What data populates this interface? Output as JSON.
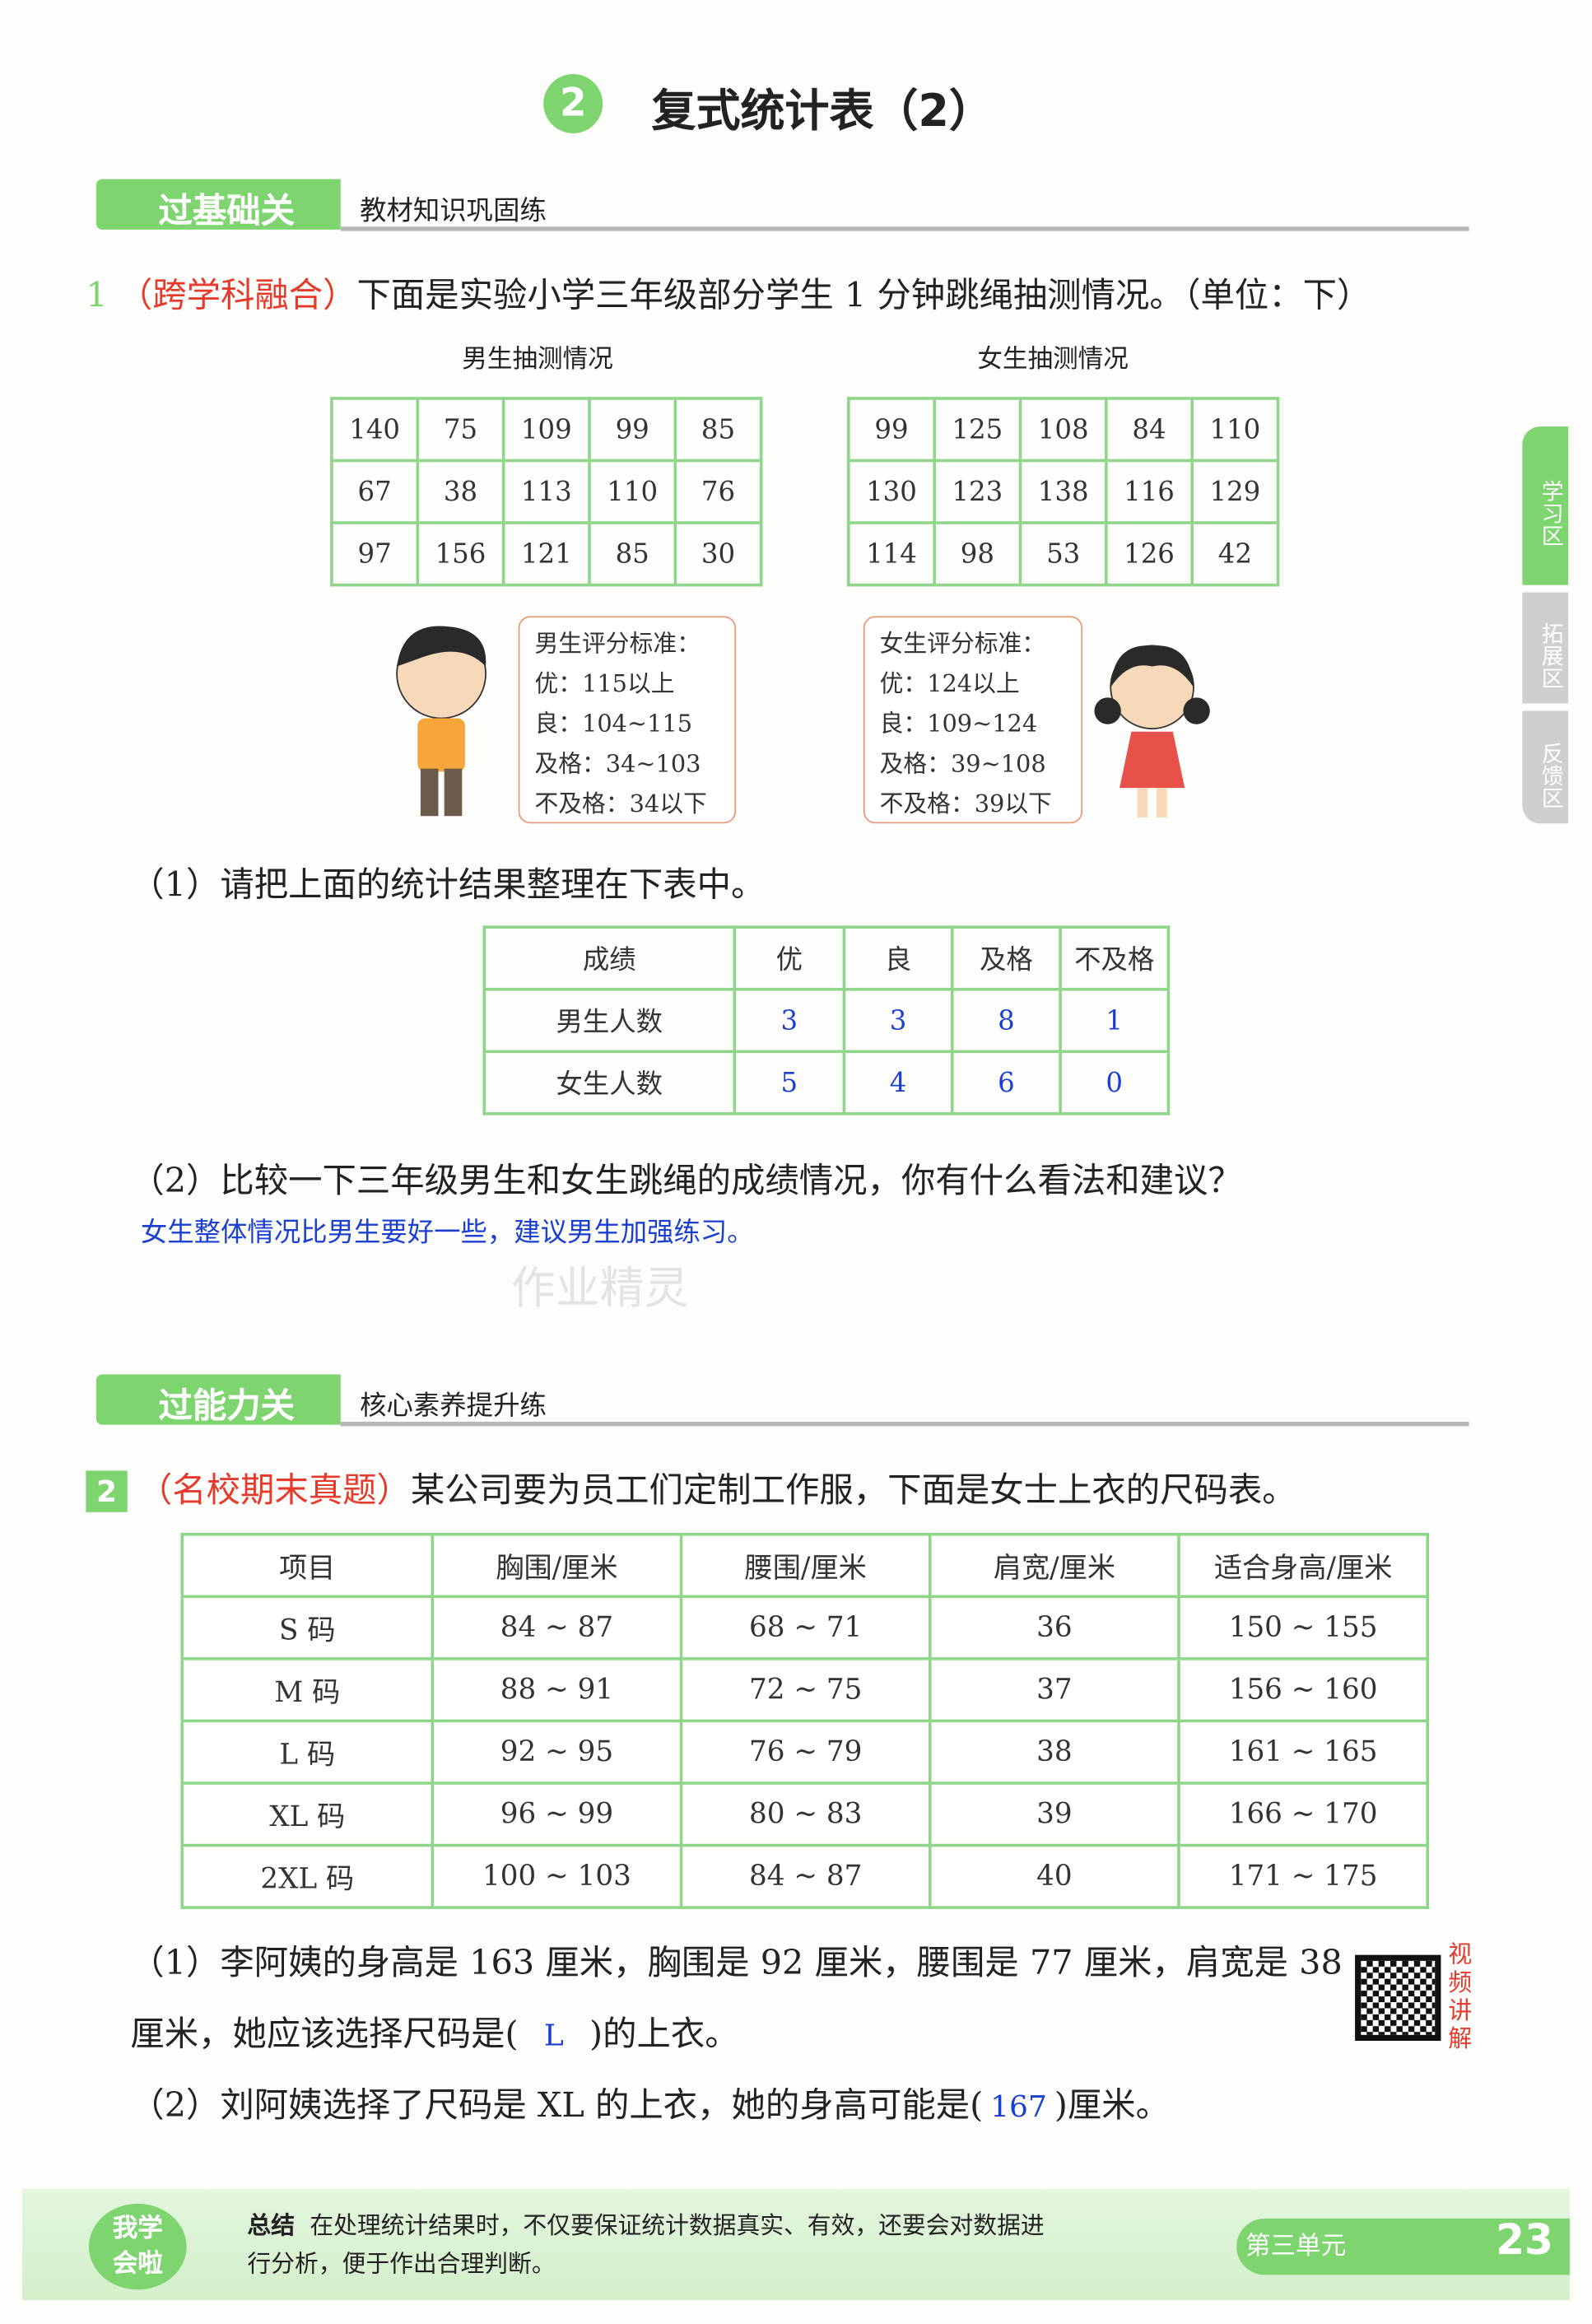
{
  "title": {
    "number": "2",
    "text": "复式统计表（2）"
  },
  "section1": {
    "tab": "过基础关",
    "subtitle": "教材知识巩固练"
  },
  "q1": {
    "number": "1",
    "tag": "（跨学科融合）",
    "text": "下面是实验小学三年级部分学生 1 分钟跳绳抽测情况。（单位：下）",
    "boys_caption": "男生抽测情况",
    "girls_caption": "女生抽测情况",
    "boys": [
      [
        "140",
        "75",
        "109",
        "99",
        "85"
      ],
      [
        "67",
        "38",
        "113",
        "110",
        "76"
      ],
      [
        "97",
        "156",
        "121",
        "85",
        "30"
      ]
    ],
    "girls": [
      [
        "99",
        "125",
        "108",
        "84",
        "110"
      ],
      [
        "130",
        "123",
        "138",
        "116",
        "129"
      ],
      [
        "114",
        "98",
        "53",
        "126",
        "42"
      ]
    ],
    "boy_standard": [
      "男生评分标准：",
      "优：115以上",
      "良：104~115",
      "及格：34~103",
      "不及格：34以下"
    ],
    "girl_standard": [
      "女生评分标准：",
      "优：124以上",
      "良：109~124",
      "及格：39~108",
      "不及格：39以下"
    ],
    "p1": "（1）请把上面的统计结果整理在下表中。",
    "result_header": [
      "成绩",
      "优",
      "良",
      "及格",
      "不及格"
    ],
    "result_rows": [
      {
        "label": "男生人数",
        "values": [
          "3",
          "3",
          "8",
          "1"
        ]
      },
      {
        "label": "女生人数",
        "values": [
          "5",
          "4",
          "6",
          "0"
        ]
      }
    ],
    "p2": "（2）比较一下三年级男生和女生跳绳的成绩情况，你有什么看法和建议？",
    "p2_answer": "女生整体情况比男生要好一些，建议男生加强练习。"
  },
  "watermark": "作业精灵",
  "section2": {
    "tab": "过能力关",
    "subtitle": "核心素养提升练"
  },
  "q2": {
    "number": "2",
    "tag": "（名校期末真题）",
    "text": "某公司要为员工们定制工作服，下面是女士上衣的尺码表。",
    "header": [
      "项目",
      "胸围/厘米",
      "腰围/厘米",
      "肩宽/厘米",
      "适合身高/厘米"
    ],
    "rows": [
      [
        "S 码",
        "84 ~ 87",
        "68 ~ 71",
        "36",
        "150 ~ 155"
      ],
      [
        "M 码",
        "88 ~ 91",
        "72 ~ 75",
        "37",
        "156 ~ 160"
      ],
      [
        "L 码",
        "92 ~ 95",
        "76 ~ 79",
        "38",
        "161 ~ 165"
      ],
      [
        "XL 码",
        "96 ~ 99",
        "80 ~ 83",
        "39",
        "166 ~ 170"
      ],
      [
        "2XL 码",
        "100 ~ 103",
        "84 ~ 87",
        "40",
        "171 ~ 175"
      ]
    ],
    "p1_line1": "（1）李阿姨的身高是 163 厘米，胸围是 92 厘米，腰围是 77 厘米，肩宽是 38",
    "p1_line2_a": "厘米，她应该选择尺码是(",
    "p1_answer": "L",
    "p1_line2_b": ")的上衣。",
    "p2_a": "（2）刘阿姨选择了尺码是 XL 的上衣，她的身高可能是(",
    "p2_answer": "167",
    "p2_b": ")厘米。",
    "video_label": "视频讲解"
  },
  "side_tabs": [
    "学习区",
    "拓展区",
    "反馈区"
  ],
  "footer": {
    "badge": "我学会啦",
    "label": "总结",
    "text_line1": "在处理统计结果时，不仅要保证统计数据真实、有效，还要会对数据进",
    "text_line2": "行分析，便于作出合理判断。",
    "unit": "第三单元",
    "page": "23"
  },
  "colors": {
    "green": "#7ed46f",
    "red": "#e53a2c",
    "answer_blue": "#1a3fd1"
  }
}
